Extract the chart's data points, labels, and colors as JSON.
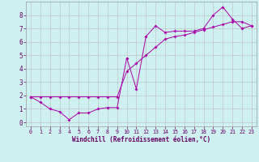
{
  "xlabel": "Windchill (Refroidissement éolien,°C)",
  "background_color": "#cff0f0",
  "grid_color": "#bbbbbb",
  "line_color": "#aa00aa",
  "xlim": [
    -0.5,
    23.5
  ],
  "ylim": [
    -0.3,
    9.0
  ],
  "xticks": [
    0,
    1,
    2,
    3,
    4,
    5,
    6,
    7,
    8,
    9,
    10,
    11,
    12,
    13,
    14,
    15,
    16,
    17,
    18,
    19,
    20,
    21,
    22,
    23
  ],
  "yticks": [
    0,
    1,
    2,
    3,
    4,
    5,
    6,
    7,
    8
  ],
  "series1_x": [
    0,
    1,
    2,
    3,
    4,
    5,
    6,
    7,
    8,
    9,
    10,
    11,
    12,
    13,
    14,
    15,
    16,
    17,
    18,
    19,
    20,
    21,
    22,
    23
  ],
  "series1_y": [
    1.9,
    1.5,
    1.0,
    0.8,
    0.2,
    0.7,
    0.7,
    1.0,
    1.1,
    1.1,
    4.8,
    2.5,
    6.4,
    7.2,
    6.7,
    6.8,
    6.8,
    6.8,
    7.0,
    8.0,
    8.6,
    7.7,
    7.0,
    7.2
  ],
  "series2_x": [
    0,
    1,
    2,
    3,
    4,
    5,
    6,
    7,
    8,
    9,
    10,
    11,
    12,
    13,
    14,
    15,
    16,
    17,
    18,
    19,
    20,
    21,
    22,
    23
  ],
  "series2_y": [
    1.9,
    1.9,
    1.9,
    1.9,
    1.9,
    1.9,
    1.9,
    1.9,
    1.9,
    1.9,
    3.8,
    4.4,
    5.0,
    5.6,
    6.2,
    6.4,
    6.5,
    6.7,
    6.9,
    7.1,
    7.3,
    7.5,
    7.5,
    7.2
  ]
}
